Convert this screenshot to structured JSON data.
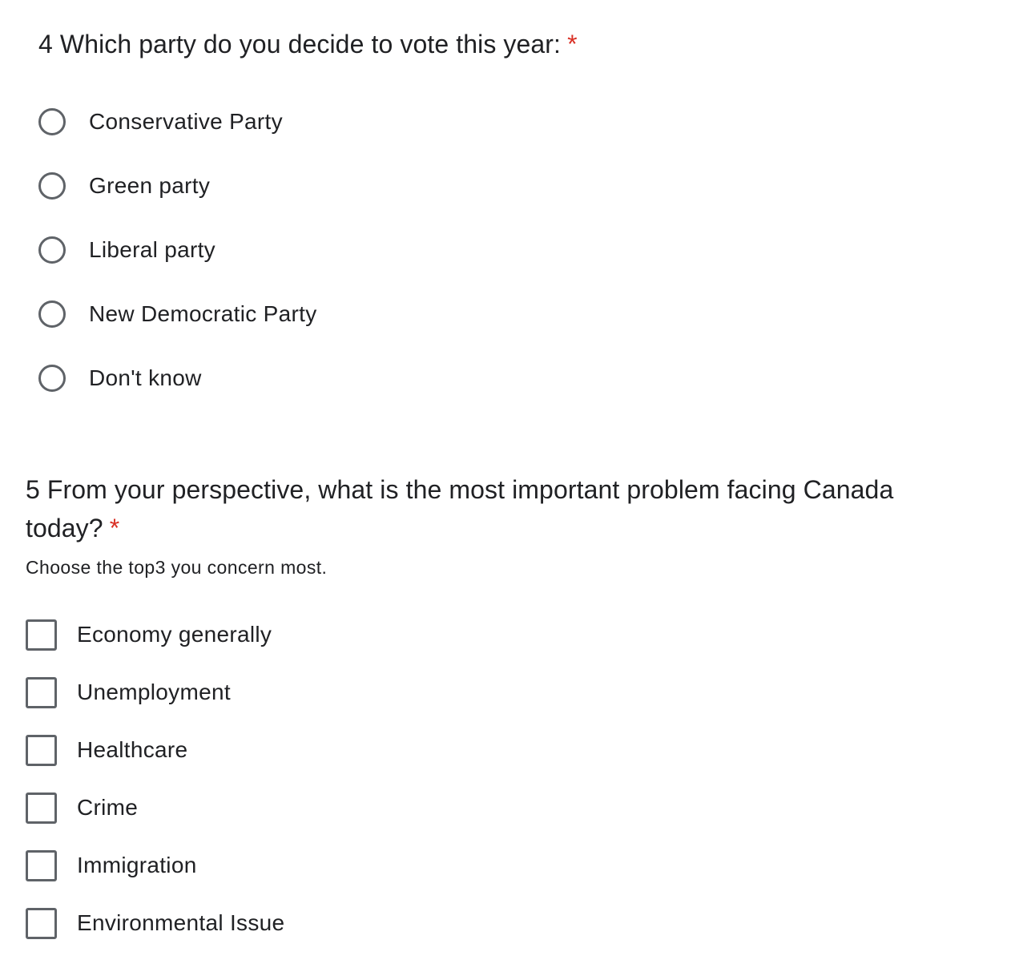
{
  "question4": {
    "title": "4 Which party do you decide to vote this year:",
    "required_mark": "*",
    "options": [
      {
        "label": "Conservative Party"
      },
      {
        "label": "Green party"
      },
      {
        "label": "Liberal party"
      },
      {
        "label": "New Democratic Party"
      },
      {
        "label": "Don't know"
      }
    ]
  },
  "question5": {
    "title": "5 From your perspective, what is the most important problem facing Canada today?",
    "required_mark": "*",
    "description": "Choose the top3 you concern most.",
    "options": [
      {
        "label": "Economy generally"
      },
      {
        "label": "Unemployment"
      },
      {
        "label": "Healthcare"
      },
      {
        "label": "Crime"
      },
      {
        "label": "Immigration"
      },
      {
        "label": "Environmental Issue"
      }
    ]
  },
  "colors": {
    "required": "#d93025",
    "control_border": "#5f6368",
    "text": "#202124"
  }
}
